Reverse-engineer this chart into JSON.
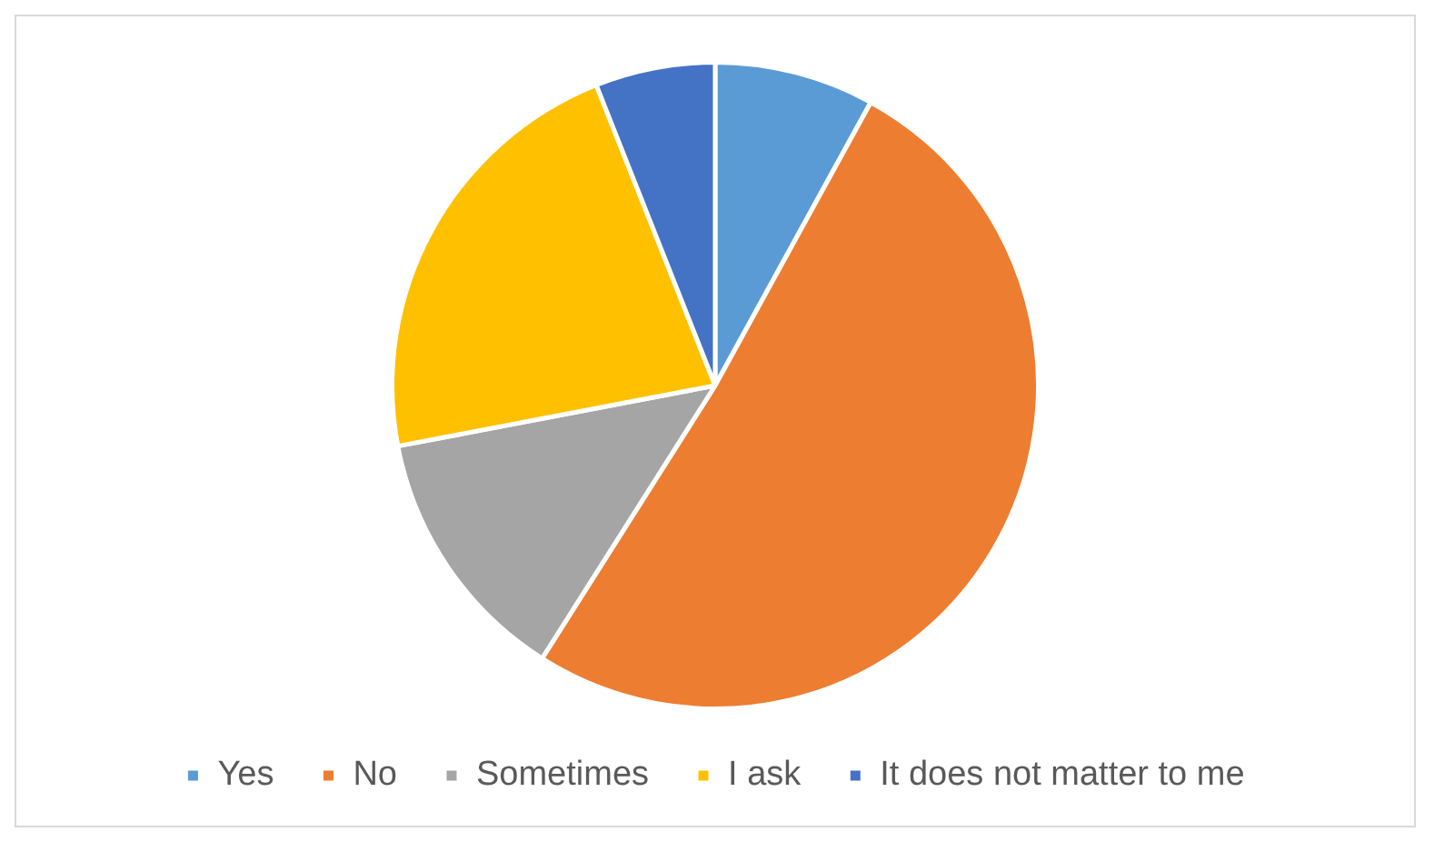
{
  "chart_data": {
    "type": "pie",
    "categories": [
      "Yes",
      "No",
      "Sometimes",
      "I ask",
      "It does not matter to me"
    ],
    "values": [
      8,
      51,
      13,
      22,
      6
    ],
    "colors": [
      "#5b9bd5",
      "#ed7d31",
      "#a5a5a5",
      "#ffc000",
      "#4472c4"
    ],
    "legend": "bottom"
  }
}
